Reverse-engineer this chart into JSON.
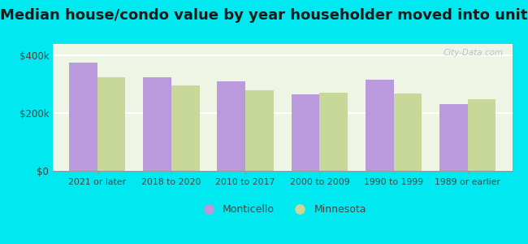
{
  "title": "Median house/condo value by year householder moved into unit",
  "categories": [
    "2021 or later",
    "2018 to 2020",
    "2010 to 2017",
    "2000 to 2009",
    "1990 to 1999",
    "1989 or earlier"
  ],
  "monticello_values": [
    375000,
    325000,
    310000,
    265000,
    315000,
    232000
  ],
  "minnesota_values": [
    325000,
    295000,
    278000,
    272000,
    268000,
    248000
  ],
  "monticello_color": "#bb99dd",
  "minnesota_color": "#c8d898",
  "background_color": "#00e8f0",
  "plot_bg_gradient_top": "#f5f8ee",
  "plot_bg_gradient_bottom": "#e8f5e8",
  "yticks": [
    0,
    200000,
    400000
  ],
  "ytick_labels": [
    "$0",
    "$200k",
    "$400k"
  ],
  "ylim": [
    0,
    440000
  ],
  "legend_labels": [
    "Monticello",
    "Minnesota"
  ],
  "title_fontsize": 13,
  "watermark": "City-Data.com"
}
